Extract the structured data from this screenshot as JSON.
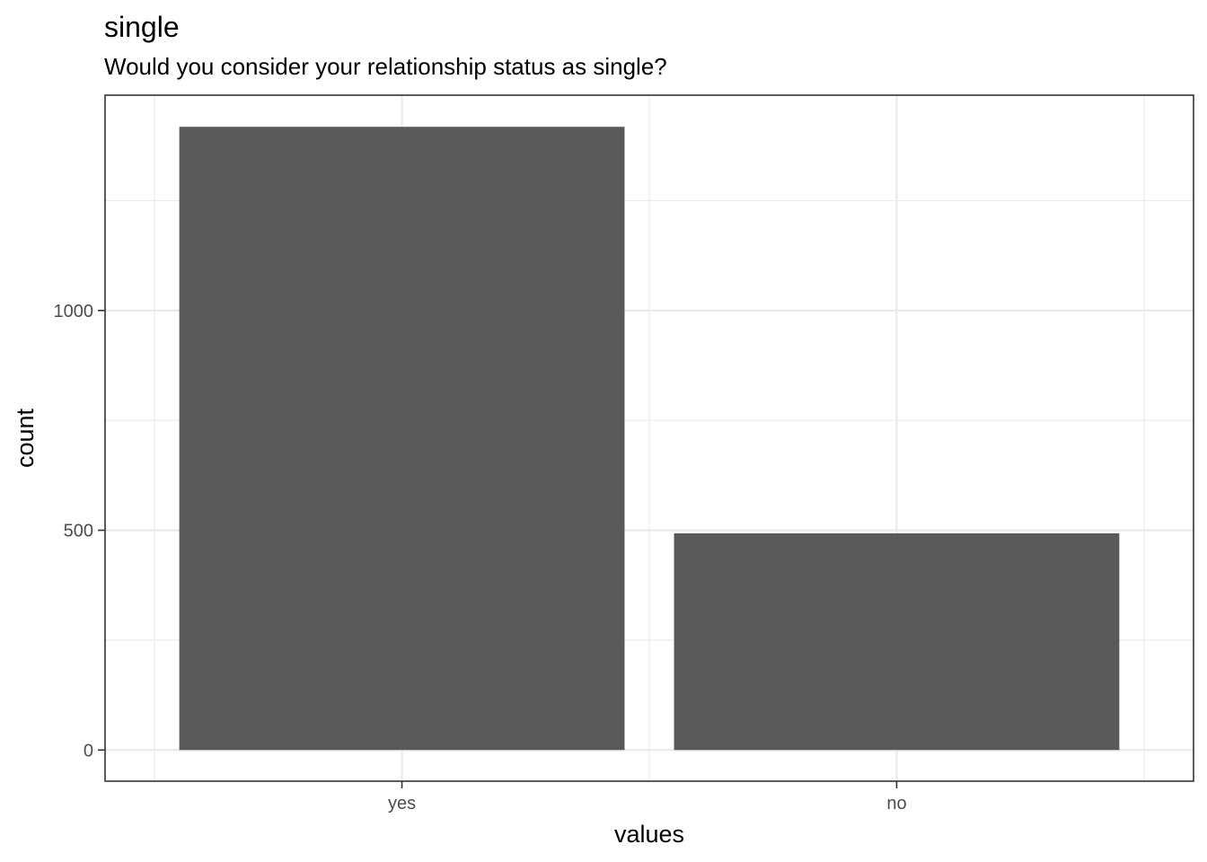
{
  "chart_data": {
    "type": "bar",
    "title": "single",
    "subtitle": "Would you consider your relationship status as single?",
    "xlabel": "values",
    "ylabel": "count",
    "categories": [
      "yes",
      "no"
    ],
    "values": [
      1418,
      493
    ],
    "ylim": [
      -71,
      1490
    ],
    "yticks": [
      0,
      500,
      1000
    ],
    "y_minor_ticks": [
      250,
      750,
      1250
    ],
    "grid": true,
    "colors": {
      "bar": "#595959",
      "grid": "#ebebeb",
      "panel_border": "#333333",
      "tick_label": "#4d4d4d"
    }
  }
}
